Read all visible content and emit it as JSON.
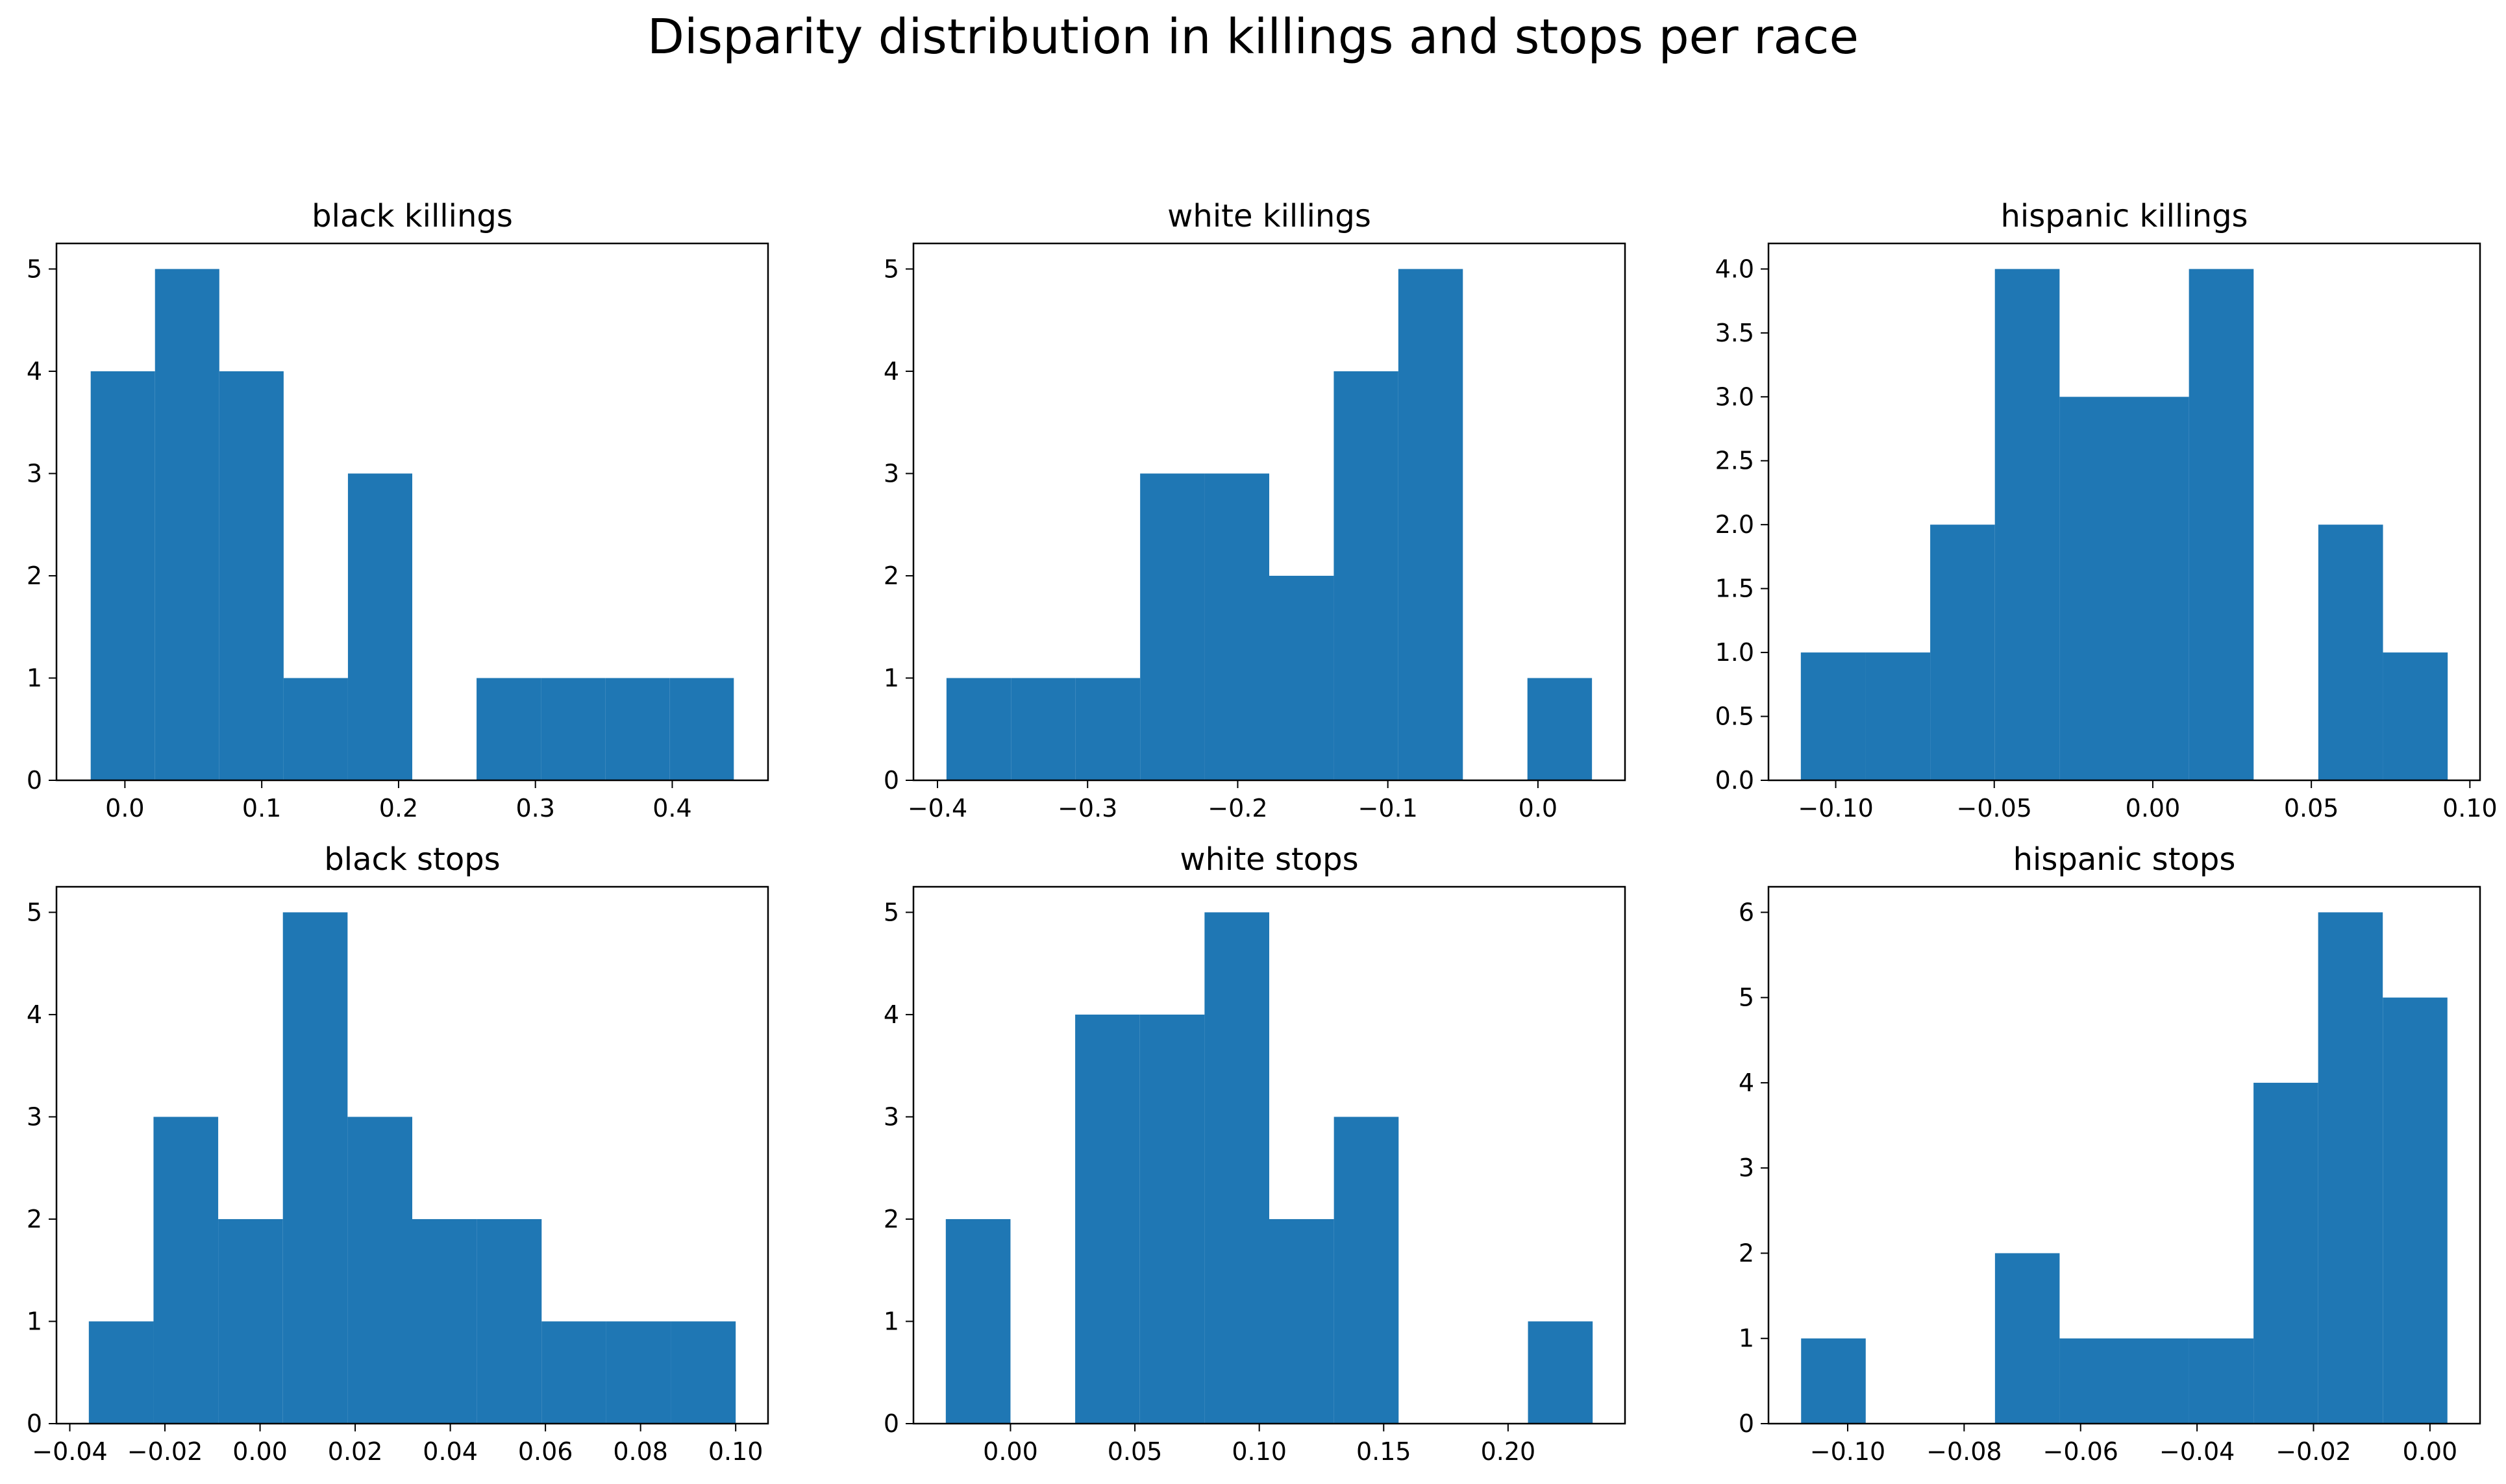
{
  "title": "Disparity distribution in killings and stops per race",
  "colors": {
    "bar": "#1f77b4",
    "axis": "#000000",
    "background": "#ffffff"
  },
  "chart_data": [
    {
      "type": "bar",
      "title": "black killings",
      "bin_edges": [
        -0.025,
        0.022,
        0.069,
        0.116,
        0.163,
        0.21,
        0.257,
        0.304,
        0.351,
        0.398,
        0.445
      ],
      "values": [
        4,
        5,
        4,
        1,
        3,
        0,
        1,
        1,
        1,
        1
      ],
      "xlim": [
        -0.05,
        0.47
      ],
      "ylim": [
        0,
        5.25
      ],
      "xticks": [
        0.0,
        0.1,
        0.2,
        0.3,
        0.4
      ],
      "xtick_labels": [
        "0.0",
        "0.1",
        "0.2",
        "0.3",
        "0.4"
      ],
      "yticks": [
        0,
        1,
        2,
        3,
        4,
        5
      ],
      "ytick_labels": [
        "0",
        "1",
        "2",
        "3",
        "4",
        "5"
      ]
    },
    {
      "type": "bar",
      "title": "white killings",
      "bin_edges": [
        -0.394,
        -0.351,
        -0.308,
        -0.265,
        -0.222,
        -0.179,
        -0.136,
        -0.093,
        -0.05,
        -0.007,
        0.036
      ],
      "values": [
        1,
        1,
        1,
        3,
        3,
        2,
        4,
        5,
        0,
        1
      ],
      "xlim": [
        -0.416,
        0.058
      ],
      "ylim": [
        0,
        5.25
      ],
      "xticks": [
        -0.4,
        -0.3,
        -0.2,
        -0.1,
        0.0
      ],
      "xtick_labels": [
        "−0.4",
        "−0.3",
        "−0.2",
        "−0.1",
        "0.0"
      ],
      "yticks": [
        0,
        1,
        2,
        3,
        4,
        5
      ],
      "ytick_labels": [
        "0",
        "1",
        "2",
        "3",
        "4",
        "5"
      ]
    },
    {
      "type": "bar",
      "title": "hispanic killings",
      "bin_edges": [
        -0.111,
        -0.0906,
        -0.0702,
        -0.0498,
        -0.0294,
        -0.009,
        0.0114,
        0.0318,
        0.0522,
        0.0726,
        0.093
      ],
      "values": [
        1,
        1,
        2,
        4,
        3,
        3,
        4,
        0,
        2,
        1
      ],
      "xlim": [
        -0.1212,
        0.1032
      ],
      "ylim": [
        0,
        4.2
      ],
      "xticks": [
        -0.1,
        -0.05,
        0.0,
        0.05,
        0.1
      ],
      "xtick_labels": [
        "−0.10",
        "−0.05",
        "0.00",
        "0.05",
        "0.10"
      ],
      "yticks": [
        0,
        0.5,
        1.0,
        1.5,
        2.0,
        2.5,
        3.0,
        3.5,
        4.0
      ],
      "ytick_labels": [
        "0.0",
        "0.5",
        "1.0",
        "1.5",
        "2.0",
        "2.5",
        "3.0",
        "3.5",
        "4.0"
      ]
    },
    {
      "type": "bar",
      "title": "black stops",
      "bin_edges": [
        -0.036,
        -0.0224,
        -0.0088,
        0.0048,
        0.0184,
        0.032,
        0.0456,
        0.0592,
        0.0728,
        0.0864,
        0.1
      ],
      "values": [
        1,
        3,
        2,
        5,
        3,
        2,
        2,
        1,
        1,
        1
      ],
      "xlim": [
        -0.0428,
        0.1068
      ],
      "ylim": [
        0,
        5.25
      ],
      "xticks": [
        -0.04,
        -0.02,
        0.0,
        0.02,
        0.04,
        0.06,
        0.08,
        0.1
      ],
      "xtick_labels": [
        "−0.04",
        "−0.02",
        "0.00",
        "0.02",
        "0.04",
        "0.06",
        "0.08",
        "0.10"
      ],
      "yticks": [
        0,
        1,
        2,
        3,
        4,
        5
      ],
      "ytick_labels": [
        "0",
        "1",
        "2",
        "3",
        "4",
        "5"
      ]
    },
    {
      "type": "bar",
      "title": "white stops",
      "bin_edges": [
        -0.026,
        0.0,
        0.026,
        0.052,
        0.078,
        0.104,
        0.13,
        0.156,
        0.182,
        0.208,
        0.234
      ],
      "values": [
        2,
        0,
        4,
        4,
        5,
        2,
        3,
        0,
        0,
        1
      ],
      "xlim": [
        -0.039,
        0.247
      ],
      "ylim": [
        0,
        5.25
      ],
      "xticks": [
        0.0,
        0.05,
        0.1,
        0.15,
        0.2
      ],
      "xtick_labels": [
        "0.00",
        "0.05",
        "0.10",
        "0.15",
        "0.20"
      ],
      "yticks": [
        0,
        1,
        2,
        3,
        4,
        5
      ],
      "ytick_labels": [
        "0",
        "1",
        "2",
        "3",
        "4",
        "5"
      ]
    },
    {
      "type": "bar",
      "title": "hispanic stops",
      "bin_edges": [
        -0.108,
        -0.0969,
        -0.0858,
        -0.0747,
        -0.0636,
        -0.0525,
        -0.0414,
        -0.0303,
        -0.0192,
        -0.0081,
        0.003
      ],
      "values": [
        1,
        0,
        0,
        2,
        1,
        1,
        1,
        4,
        6,
        5
      ],
      "xlim": [
        -0.1136,
        0.0086
      ],
      "ylim": [
        0,
        6.3
      ],
      "xticks": [
        -0.1,
        -0.08,
        -0.06,
        -0.04,
        -0.02,
        0.0
      ],
      "xtick_labels": [
        "−0.10",
        "−0.08",
        "−0.06",
        "−0.04",
        "−0.02",
        "0.00"
      ],
      "yticks": [
        0,
        1,
        2,
        3,
        4,
        5,
        6
      ],
      "ytick_labels": [
        "0",
        "1",
        "2",
        "3",
        "4",
        "5",
        "6"
      ]
    }
  ]
}
